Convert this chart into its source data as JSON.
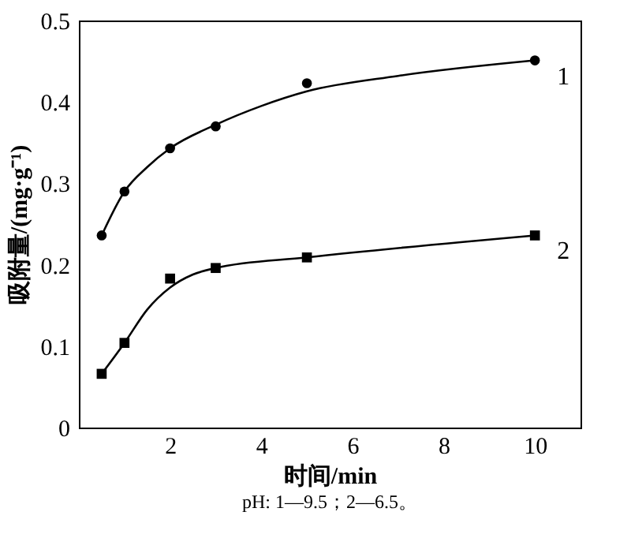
{
  "chart_data": {
    "type": "scatter",
    "xlabel": "时间/min",
    "ylabel": "吸附量/(mg·g⁻¹)",
    "annotations": [
      "pH: 1—9.5；2—6.5。"
    ],
    "xlim": [
      0,
      11
    ],
    "xticks": [
      2,
      4,
      6,
      8,
      10
    ],
    "ylim": [
      0,
      0.5
    ],
    "yticks": [
      {
        "value": 0,
        "label": "0"
      },
      0.1,
      0.2,
      0.3,
      0.4,
      0.5
    ],
    "grid": false,
    "series": [
      {
        "name": "1",
        "marker": "circle",
        "color": "#000000",
        "x": [
          0.5,
          1,
          2,
          3,
          5,
          10
        ],
        "values": [
          0.236,
          0.29,
          0.343,
          0.37,
          0.423,
          0.451
        ]
      },
      {
        "name": "2",
        "marker": "square",
        "color": "#000000",
        "x": [
          0.5,
          1,
          2,
          3,
          5,
          10
        ],
        "values": [
          0.066,
          0.104,
          0.183,
          0.196,
          0.209,
          0.236
        ]
      },
      {
        "type": "line",
        "color": "#000000",
        "line_style": "solid",
        "marker": "none",
        "x": [
          0.5,
          1,
          1.5,
          2,
          3,
          4,
          5,
          7,
          10
        ],
        "values": [
          0.236,
          0.29,
          0.32,
          0.343,
          0.372,
          0.395,
          0.413,
          0.432,
          0.451
        ]
      },
      {
        "type": "line",
        "color": "#000000",
        "line_style": "solid",
        "marker": "none",
        "x": [
          0.5,
          1,
          1.5,
          2,
          2.5,
          3,
          5,
          10
        ],
        "values": [
          0.066,
          0.104,
          0.145,
          0.172,
          0.188,
          0.196,
          0.209,
          0.236
        ]
      }
    ]
  }
}
